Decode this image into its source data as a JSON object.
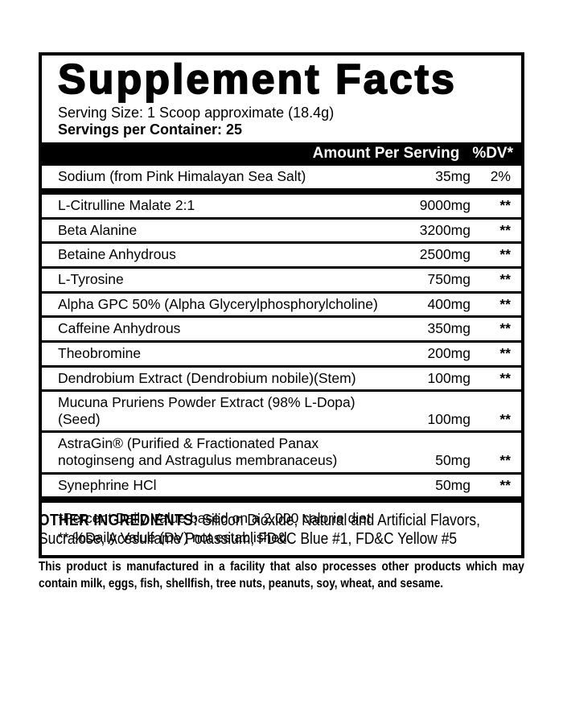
{
  "label": {
    "title": "Supplement Facts",
    "serving_size": "Serving Size: 1 Scoop approximate (18.4g)",
    "servings_per_container": "Servings per Container: 25",
    "header": {
      "amount": "Amount Per Serving",
      "dv": "%DV*"
    },
    "sodium_row": {
      "name": "Sodium (from Pink Himalayan Sea Salt)",
      "amount": "35mg",
      "dv": "2%"
    },
    "rows": [
      {
        "name": "L-Citrulline Malate 2:1",
        "amount": "9000mg",
        "dv": "**"
      },
      {
        "name": "Beta Alanine",
        "amount": "3200mg",
        "dv": "**"
      },
      {
        "name": "Betaine Anhydrous",
        "amount": "2500mg",
        "dv": "**"
      },
      {
        "name": "L-Tyrosine",
        "amount": "750mg",
        "dv": "**"
      },
      {
        "name": "Alpha GPC 50% (Alpha Glycerylphosphorylcholine)",
        "amount": "400mg",
        "dv": "**"
      },
      {
        "name": "Caffeine Anhydrous",
        "amount": "350mg",
        "dv": "**"
      },
      {
        "name": "Theobromine",
        "amount": "200mg",
        "dv": "**"
      },
      {
        "name": "Dendrobium Extract (Dendrobium nobile)(Stem)",
        "amount": "100mg",
        "dv": "**"
      },
      {
        "name": "Mucuna Pruriens Powder Extract (98% L-Dopa)(Seed)",
        "amount": "100mg",
        "dv": "**"
      },
      {
        "name": "AstraGin® (Purified & Fractionated Panax\nnotoginseng and Astragulus membranaceus)",
        "amount": "50mg",
        "dv": "**"
      },
      {
        "name": "Synephrine HCl",
        "amount": "50mg",
        "dv": "**"
      }
    ],
    "footnotes": [
      "*Percent Daily Value based on a 2,000 calorie diet.",
      "** %Daily Value (DV) not established."
    ],
    "other_ingredients_label": "OTHER INGREDIENTS:",
    "other_ingredients": " Silicon Dioxide, Natural and Artificial Flavors, Sucralose, Acesulfame Potassium, FD&C Blue #1, FD&C Yellow #5",
    "allergen_statement": "This product is manufactured in a facility that also processes other products which may contain milk, eggs, fish, shellfish, tree nuts, peanuts, soy, wheat, and sesame.",
    "colors": {
      "ink": "#000000",
      "background": "#ffffff"
    }
  }
}
